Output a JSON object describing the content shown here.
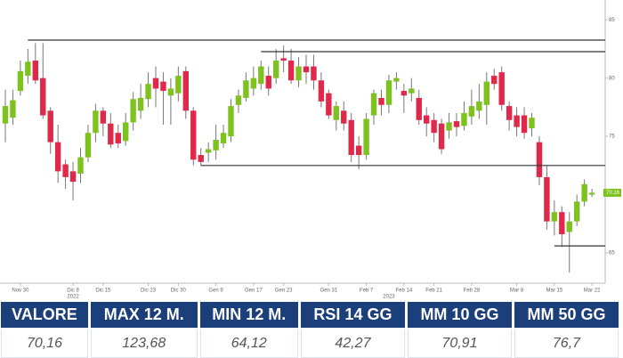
{
  "chart_data": {
    "type": "candlestick",
    "categories": [
      null,
      null,
      "Nov 30",
      null,
      null,
      null,
      null,
      null,
      null,
      "Dic 8",
      null,
      null,
      null,
      "Dic 15",
      null,
      null,
      null,
      null,
      null,
      "Dic 23",
      null,
      null,
      null,
      "Dic 30",
      null,
      null,
      null,
      null,
      "Gen 9",
      null,
      null,
      null,
      null,
      "Gen 17",
      null,
      null,
      null,
      "Gen 23",
      null,
      null,
      null,
      null,
      null,
      "Gen 31",
      null,
      null,
      null,
      null,
      "Feb 7",
      null,
      null,
      null,
      null,
      "Feb 14",
      null,
      null,
      null,
      "Feb 21",
      null,
      null,
      null,
      null,
      "Feb 28",
      null,
      null,
      null,
      null,
      null,
      "Mar 8",
      null,
      null,
      null,
      null,
      "Mar 15",
      null,
      null,
      null,
      null,
      "Mar 22"
    ],
    "category_years": [
      null,
      null,
      null,
      null,
      null,
      null,
      null,
      null,
      null,
      "2022",
      null,
      null,
      null,
      null,
      null,
      null,
      null,
      null,
      null,
      null,
      null,
      null,
      null,
      null,
      null,
      null,
      null,
      null,
      null,
      null,
      null,
      null,
      null,
      null,
      null,
      null,
      null,
      null,
      null,
      null,
      null,
      null,
      null,
      null,
      null,
      null,
      null,
      null,
      null,
      null,
      null,
      "2023",
      null,
      null,
      null,
      null,
      null,
      null,
      null,
      null,
      null,
      null,
      null,
      null,
      null,
      null,
      null,
      null,
      null,
      null,
      null,
      null,
      null,
      null,
      null,
      null,
      null,
      null,
      null
    ],
    "open": [
      76.1,
      76.6,
      78.9,
      80.2,
      81.5,
      80,
      77.2,
      74.5,
      72.6,
      72,
      71.8,
      73.2,
      75.3,
      77.2,
      76.1,
      75.3,
      74.6,
      76.2,
      77.2,
      78.2,
      80,
      79.7,
      78.5,
      78.7,
      80.6,
      77.2,
      73.4,
      73.6,
      73.8,
      74.4,
      75,
      77.7,
      78.3,
      79.1,
      79.5,
      80.2,
      80,
      81.7,
      81.5,
      79.8,
      81,
      81,
      79.8,
      78.7,
      76.4,
      77.2,
      76.4,
      74.2,
      73.4,
      76.8,
      78.3,
      77.7,
      79.7,
      78.9,
      78.7,
      78.3,
      76.8,
      76.4,
      76.1,
      75.5,
      76.3,
      75.9,
      76.7,
      77.2,
      77.7,
      80.2,
      80.5,
      77.6,
      76.8,
      76.8,
      75.7,
      74.5,
      71.5,
      67.7,
      68.5,
      66.8,
      67.7,
      69.4,
      70
    ],
    "high": [
      79,
      79,
      81.5,
      82.5,
      83,
      83,
      77.5,
      76,
      73,
      72.8,
      74,
      76,
      77.8,
      77.5,
      77,
      76,
      77,
      78.8,
      79.5,
      80.5,
      81,
      80.5,
      80,
      81,
      81,
      77.5,
      74,
      74.5,
      76,
      76,
      78.2,
      79,
      80.5,
      81,
      81.5,
      81,
      82.5,
      82.8,
      82.5,
      81.8,
      82,
      82,
      80.5,
      79,
      78,
      78,
      77,
      75,
      77,
      79,
      79,
      80.3,
      80.5,
      79.5,
      80,
      79,
      77.5,
      77,
      76.5,
      77,
      77,
      78,
      79,
      79.5,
      80.5,
      80.8,
      81,
      78,
      77.5,
      77.5,
      77,
      75,
      72.5,
      69.5,
      69,
      68.5,
      70,
      71.3,
      70.5
    ],
    "low": [
      74.5,
      76,
      78.5,
      79.5,
      79.5,
      76.5,
      73.5,
      71,
      70.5,
      69.5,
      71,
      72.8,
      74.5,
      75,
      74,
      74,
      74.2,
      75.5,
      76.5,
      77.5,
      77.5,
      76,
      76,
      78,
      76.5,
      72.5,
      72.5,
      72.8,
      73,
      74,
      74.5,
      77,
      78,
      78.5,
      79,
      78.5,
      79.5,
      80.5,
      79.5,
      79.2,
      79.5,
      79,
      77.5,
      76.5,
      75.5,
      75.5,
      72.8,
      72.2,
      73,
      76,
      76.8,
      77,
      79,
      77,
      78,
      76,
      75,
      74.5,
      73.5,
      74.8,
      75,
      75.5,
      76,
      76.5,
      76,
      79,
      77.2,
      75.5,
      75,
      74.8,
      75,
      70.8,
      67,
      66.5,
      65.5,
      63.3,
      67.3,
      69,
      69.8
    ],
    "close": [
      77.6,
      78.1,
      80.6,
      81.4,
      79.8,
      76.8,
      74.5,
      72,
      71.5,
      71.1,
      73.2,
      75.3,
      77.2,
      76.1,
      74.3,
      74.4,
      76.2,
      78.2,
      78.3,
      79.5,
      79.1,
      78.9,
      79.1,
      80.2,
      77.2,
      73,
      72.8,
      73.9,
      74.7,
      75.3,
      77.6,
      78.5,
      79.8,
      80,
      81,
      79.1,
      81.5,
      81.5,
      79.8,
      81,
      80.5,
      79.8,
      78,
      76.8,
      77.6,
      76.1,
      73.4,
      73.4,
      76.5,
      78.7,
      77.7,
      79.8,
      80,
      78.5,
      79.1,
      76.4,
      76.1,
      75.3,
      73.9,
      76.2,
      75.8,
      77,
      77.6,
      78,
      79.7,
      79.5,
      77.7,
      76.4,
      75.8,
      75.3,
      76.6,
      71.5,
      67.7,
      68.5,
      66.6,
      67.7,
      69.4,
      70.9,
      70.16
    ],
    "up_color": "#7dc21e",
    "down_color": "#e0284a",
    "levels": [
      {
        "value": 83.26,
        "from": 3
      },
      {
        "value": 82.27,
        "from": 34
      },
      {
        "value": 72.5,
        "from": 26
      },
      {
        "value": 65.6,
        "from": 73
      }
    ],
    "last_price": {
      "value": 70.16,
      "label": "70.16"
    },
    "ylim": [
      62.4,
      86.7
    ],
    "yticks": [
      65,
      75,
      80,
      85
    ]
  },
  "table": {
    "headers": [
      "VALORE",
      "MAX 12 M.",
      "MIN 12 M.",
      "RSI 14 GG",
      "MM 10 GG",
      "MM 50 GG"
    ],
    "values": [
      "70,16",
      "123,68",
      "64,12",
      "42,27",
      "70,91",
      "76,7"
    ]
  }
}
